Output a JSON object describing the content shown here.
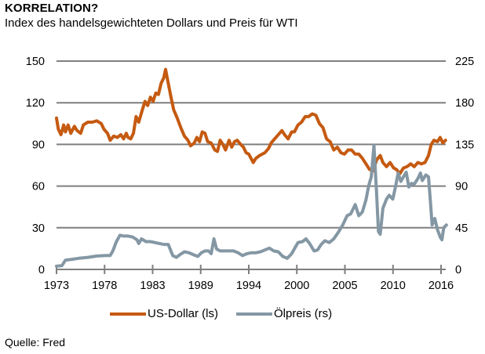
{
  "header": {
    "title": "KORRELATION?",
    "subtitle": "Index des handelsgewichteten Dollars und Preis für WTI"
  },
  "source": "Quelle: Fred",
  "colors": {
    "usd": "#C55A11",
    "oil": "#8497A4",
    "grid": "#7F7F7F"
  },
  "chart_data": {
    "type": "line",
    "title": "KORRELATION?",
    "subtitle": "Index des handelsgewichteten Dollars und Preis für WTI",
    "xlabel": "",
    "ylabel_left": "",
    "ylabel_right": "",
    "x_tick_labels": [
      "1973",
      "1978",
      "1983",
      "1989",
      "1994",
      "2000",
      "2005",
      "2010",
      "2016"
    ],
    "xlim": [
      1973,
      2016
    ],
    "y_left": {
      "ticks": [
        "0",
        "30",
        "60",
        "90",
        "120",
        "150"
      ],
      "ylim": [
        0,
        150
      ]
    },
    "y_right": {
      "ticks": [
        "0",
        "45",
        "90",
        "135",
        "180",
        "225"
      ],
      "ylim": [
        0,
        225
      ]
    },
    "grid": true,
    "legend_position": "bottom-center",
    "legend": [
      "US-Dollar (ls)",
      "Ölpreis (rs)"
    ],
    "series": [
      {
        "name": "US-Dollar (ls)",
        "axis": "left",
        "points": [
          [
            1973.0,
            109
          ],
          [
            1973.2,
            101
          ],
          [
            1973.5,
            97
          ],
          [
            1973.8,
            104
          ],
          [
            1974.0,
            99
          ],
          [
            1974.3,
            104
          ],
          [
            1974.6,
            98
          ],
          [
            1975.0,
            103
          ],
          [
            1975.3,
            100
          ],
          [
            1975.7,
            98
          ],
          [
            1976.0,
            104
          ],
          [
            1976.5,
            106
          ],
          [
            1977.0,
            106
          ],
          [
            1977.5,
            107
          ],
          [
            1978.0,
            105
          ],
          [
            1978.3,
            101
          ],
          [
            1978.7,
            98
          ],
          [
            1979.0,
            93
          ],
          [
            1979.4,
            96
          ],
          [
            1979.8,
            95
          ],
          [
            1980.2,
            97
          ],
          [
            1980.5,
            94
          ],
          [
            1980.8,
            98
          ],
          [
            1981.0,
            95
          ],
          [
            1981.3,
            94
          ],
          [
            1981.6,
            98
          ],
          [
            1981.9,
            110
          ],
          [
            1982.2,
            106
          ],
          [
            1982.6,
            115
          ],
          [
            1982.9,
            121
          ],
          [
            1983.2,
            118
          ],
          [
            1983.5,
            124
          ],
          [
            1983.8,
            121
          ],
          [
            1984.1,
            127
          ],
          [
            1984.4,
            126
          ],
          [
            1984.7,
            134
          ],
          [
            1985.0,
            138
          ],
          [
            1985.2,
            144
          ],
          [
            1985.5,
            134
          ],
          [
            1985.8,
            124
          ],
          [
            1986.1,
            115
          ],
          [
            1986.5,
            109
          ],
          [
            1986.9,
            102
          ],
          [
            1987.3,
            96
          ],
          [
            1987.7,
            93
          ],
          [
            1988.0,
            89
          ],
          [
            1988.4,
            91
          ],
          [
            1988.7,
            95
          ],
          [
            1989.0,
            92
          ],
          [
            1989.3,
            99
          ],
          [
            1989.6,
            98
          ],
          [
            1989.9,
            92
          ],
          [
            1990.3,
            91
          ],
          [
            1990.7,
            86
          ],
          [
            1991.0,
            85
          ],
          [
            1991.3,
            93
          ],
          [
            1991.6,
            90
          ],
          [
            1991.9,
            86
          ],
          [
            1992.3,
            93
          ],
          [
            1992.6,
            88
          ],
          [
            1992.9,
            92
          ],
          [
            1993.2,
            93
          ],
          [
            1993.6,
            90
          ],
          [
            1993.9,
            88
          ],
          [
            1994.2,
            84
          ],
          [
            1994.5,
            83
          ],
          [
            1995.0,
            77
          ],
          [
            1995.3,
            80
          ],
          [
            1995.7,
            82
          ],
          [
            1996.0,
            83
          ],
          [
            1996.3,
            84
          ],
          [
            1996.7,
            87
          ],
          [
            1997.0,
            91
          ],
          [
            1997.4,
            94
          ],
          [
            1997.8,
            97
          ],
          [
            1998.2,
            100
          ],
          [
            1998.5,
            97
          ],
          [
            1998.9,
            94
          ],
          [
            1999.3,
            99
          ],
          [
            1999.6,
            99
          ],
          [
            2000.0,
            104
          ],
          [
            2000.4,
            106
          ],
          [
            2000.8,
            110
          ],
          [
            2001.2,
            110
          ],
          [
            2001.6,
            112
          ],
          [
            2002.0,
            111
          ],
          [
            2002.4,
            105
          ],
          [
            2002.8,
            102
          ],
          [
            2003.2,
            94
          ],
          [
            2003.6,
            92
          ],
          [
            2004.0,
            86
          ],
          [
            2004.4,
            88
          ],
          [
            2004.8,
            84
          ],
          [
            2005.2,
            83
          ],
          [
            2005.6,
            86
          ],
          [
            2006.0,
            86
          ],
          [
            2006.4,
            83
          ],
          [
            2006.8,
            83
          ],
          [
            2007.2,
            80
          ],
          [
            2007.6,
            76
          ],
          [
            2008.0,
            72
          ],
          [
            2008.4,
            71
          ],
          [
            2008.8,
            79
          ],
          [
            2009.2,
            82
          ],
          [
            2009.5,
            77
          ],
          [
            2009.9,
            74
          ],
          [
            2010.3,
            77
          ],
          [
            2010.7,
            73
          ],
          [
            2011.0,
            72
          ],
          [
            2011.4,
            69
          ],
          [
            2011.8,
            73
          ],
          [
            2012.2,
            74
          ],
          [
            2012.6,
            76
          ],
          [
            2013.0,
            74
          ],
          [
            2013.4,
            77
          ],
          [
            2013.8,
            76
          ],
          [
            2014.2,
            77
          ],
          [
            2014.6,
            82
          ],
          [
            2014.9,
            90
          ],
          [
            2015.2,
            93
          ],
          [
            2015.6,
            92
          ],
          [
            2015.9,
            95
          ],
          [
            2016.2,
            91
          ],
          [
            2016.5,
            93
          ]
        ]
      },
      {
        "name": "Ölpreis (rs)",
        "axis": "right",
        "points": [
          [
            1973.0,
            3.5
          ],
          [
            1973.6,
            4
          ],
          [
            1974.0,
            10
          ],
          [
            1974.8,
            11
          ],
          [
            1975.5,
            12
          ],
          [
            1976.5,
            13
          ],
          [
            1977.5,
            14.5
          ],
          [
            1978.5,
            15
          ],
          [
            1979.0,
            15
          ],
          [
            1979.3,
            20
          ],
          [
            1979.7,
            30
          ],
          [
            1980.1,
            37
          ],
          [
            1980.5,
            36
          ],
          [
            1981.0,
            36
          ],
          [
            1981.5,
            35
          ],
          [
            1982.0,
            32
          ],
          [
            1982.2,
            28
          ],
          [
            1982.5,
            33
          ],
          [
            1983.0,
            30
          ],
          [
            1983.5,
            30
          ],
          [
            1984.0,
            29
          ],
          [
            1984.5,
            28
          ],
          [
            1985.0,
            27
          ],
          [
            1985.5,
            27
          ],
          [
            1986.0,
            15
          ],
          [
            1986.4,
            13
          ],
          [
            1986.8,
            16
          ],
          [
            1987.3,
            19
          ],
          [
            1987.8,
            18
          ],
          [
            1988.3,
            16
          ],
          [
            1988.8,
            14
          ],
          [
            1989.2,
            18
          ],
          [
            1989.6,
            20
          ],
          [
            1990.0,
            20
          ],
          [
            1990.3,
            17
          ],
          [
            1990.6,
            33
          ],
          [
            1990.9,
            22
          ],
          [
            1991.3,
            20
          ],
          [
            1991.8,
            20
          ],
          [
            1992.3,
            20
          ],
          [
            1992.8,
            20
          ],
          [
            1993.3,
            18
          ],
          [
            1993.8,
            15
          ],
          [
            1994.3,
            17
          ],
          [
            1994.8,
            18
          ],
          [
            1995.3,
            18
          ],
          [
            1995.8,
            19
          ],
          [
            1996.3,
            21
          ],
          [
            1996.8,
            23
          ],
          [
            1997.3,
            20
          ],
          [
            1997.8,
            19
          ],
          [
            1998.3,
            14
          ],
          [
            1998.8,
            12
          ],
          [
            1999.3,
            17
          ],
          [
            1999.7,
            24
          ],
          [
            2000.0,
            29
          ],
          [
            2000.5,
            30
          ],
          [
            2000.9,
            33
          ],
          [
            2001.3,
            28
          ],
          [
            2001.8,
            20
          ],
          [
            2002.2,
            21
          ],
          [
            2002.6,
            27
          ],
          [
            2003.0,
            31
          ],
          [
            2003.5,
            29
          ],
          [
            2004.0,
            33
          ],
          [
            2004.5,
            40
          ],
          [
            2005.0,
            48
          ],
          [
            2005.5,
            58
          ],
          [
            2005.9,
            60
          ],
          [
            2006.4,
            70
          ],
          [
            2006.8,
            58
          ],
          [
            2007.2,
            62
          ],
          [
            2007.6,
            75
          ],
          [
            2007.9,
            90
          ],
          [
            2008.2,
            100
          ],
          [
            2008.5,
            134
          ],
          [
            2008.8,
            80
          ],
          [
            2009.0,
            41
          ],
          [
            2009.2,
            38
          ],
          [
            2009.5,
            66
          ],
          [
            2009.9,
            76
          ],
          [
            2010.2,
            80
          ],
          [
            2010.6,
            76
          ],
          [
            2010.9,
            89
          ],
          [
            2011.2,
            104
          ],
          [
            2011.5,
            95
          ],
          [
            2011.8,
            100
          ],
          [
            2012.1,
            105
          ],
          [
            2012.4,
            89
          ],
          [
            2012.7,
            93
          ],
          [
            2013.0,
            92
          ],
          [
            2013.4,
            98
          ],
          [
            2013.7,
            104
          ],
          [
            2013.9,
            96
          ],
          [
            2014.3,
            102
          ],
          [
            2014.6,
            100
          ],
          [
            2014.8,
            75
          ],
          [
            2015.0,
            48
          ],
          [
            2015.3,
            55
          ],
          [
            2015.6,
            43
          ],
          [
            2015.9,
            35
          ],
          [
            2016.1,
            32
          ],
          [
            2016.3,
            45
          ],
          [
            2016.6,
            48
          ]
        ]
      }
    ]
  }
}
